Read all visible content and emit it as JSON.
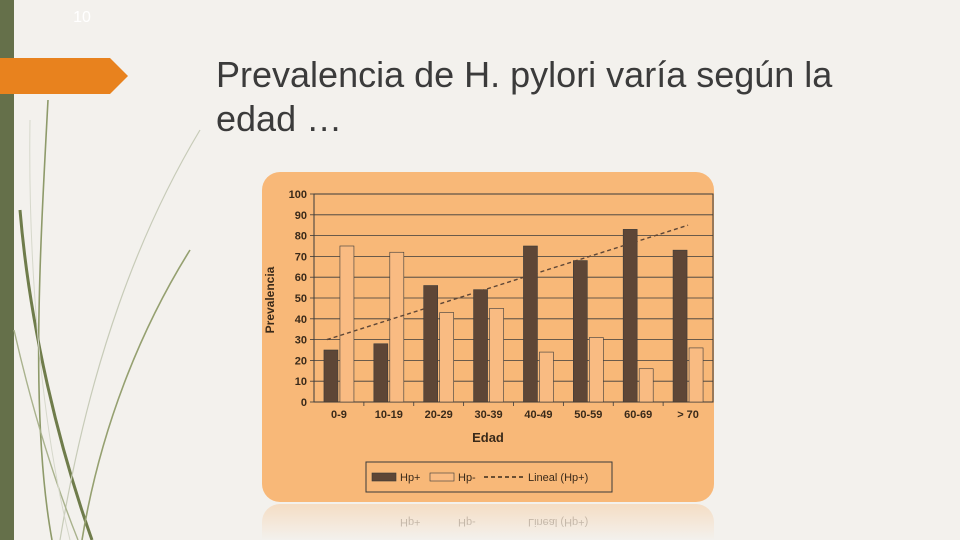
{
  "slide": {
    "number": "10",
    "title_line1": "Prevalencia de H. pylori varía según la",
    "title_line2": "edad …"
  },
  "colors": {
    "accent": "#e8821e",
    "sidebar": "#65704a",
    "panel": "#f8b878",
    "hp_pos": "#5e4636",
    "hp_neg": "#f9bb82",
    "trend": "#5e4636"
  },
  "chart_data": {
    "type": "bar",
    "categories": [
      "0-9",
      "10-19",
      "20-29",
      "30-39",
      "40-49",
      "50-59",
      "60-69",
      "> 70"
    ],
    "series": [
      {
        "name": "Hp+",
        "values": [
          25,
          28,
          56,
          54,
          75,
          68,
          83,
          73
        ]
      },
      {
        "name": "Hp-",
        "values": [
          75,
          72,
          43,
          45,
          24,
          31,
          16,
          26
        ]
      }
    ],
    "trendline": {
      "name": "Lineal (Hp+)",
      "start": 30,
      "end": 85
    },
    "xlabel": "Edad",
    "ylabel": "Prevalencia",
    "ylim": [
      0,
      100
    ],
    "yticks": [
      0,
      10,
      20,
      30,
      40,
      50,
      60,
      70,
      80,
      90,
      100
    ],
    "grid": true,
    "legend_position": "bottom"
  }
}
